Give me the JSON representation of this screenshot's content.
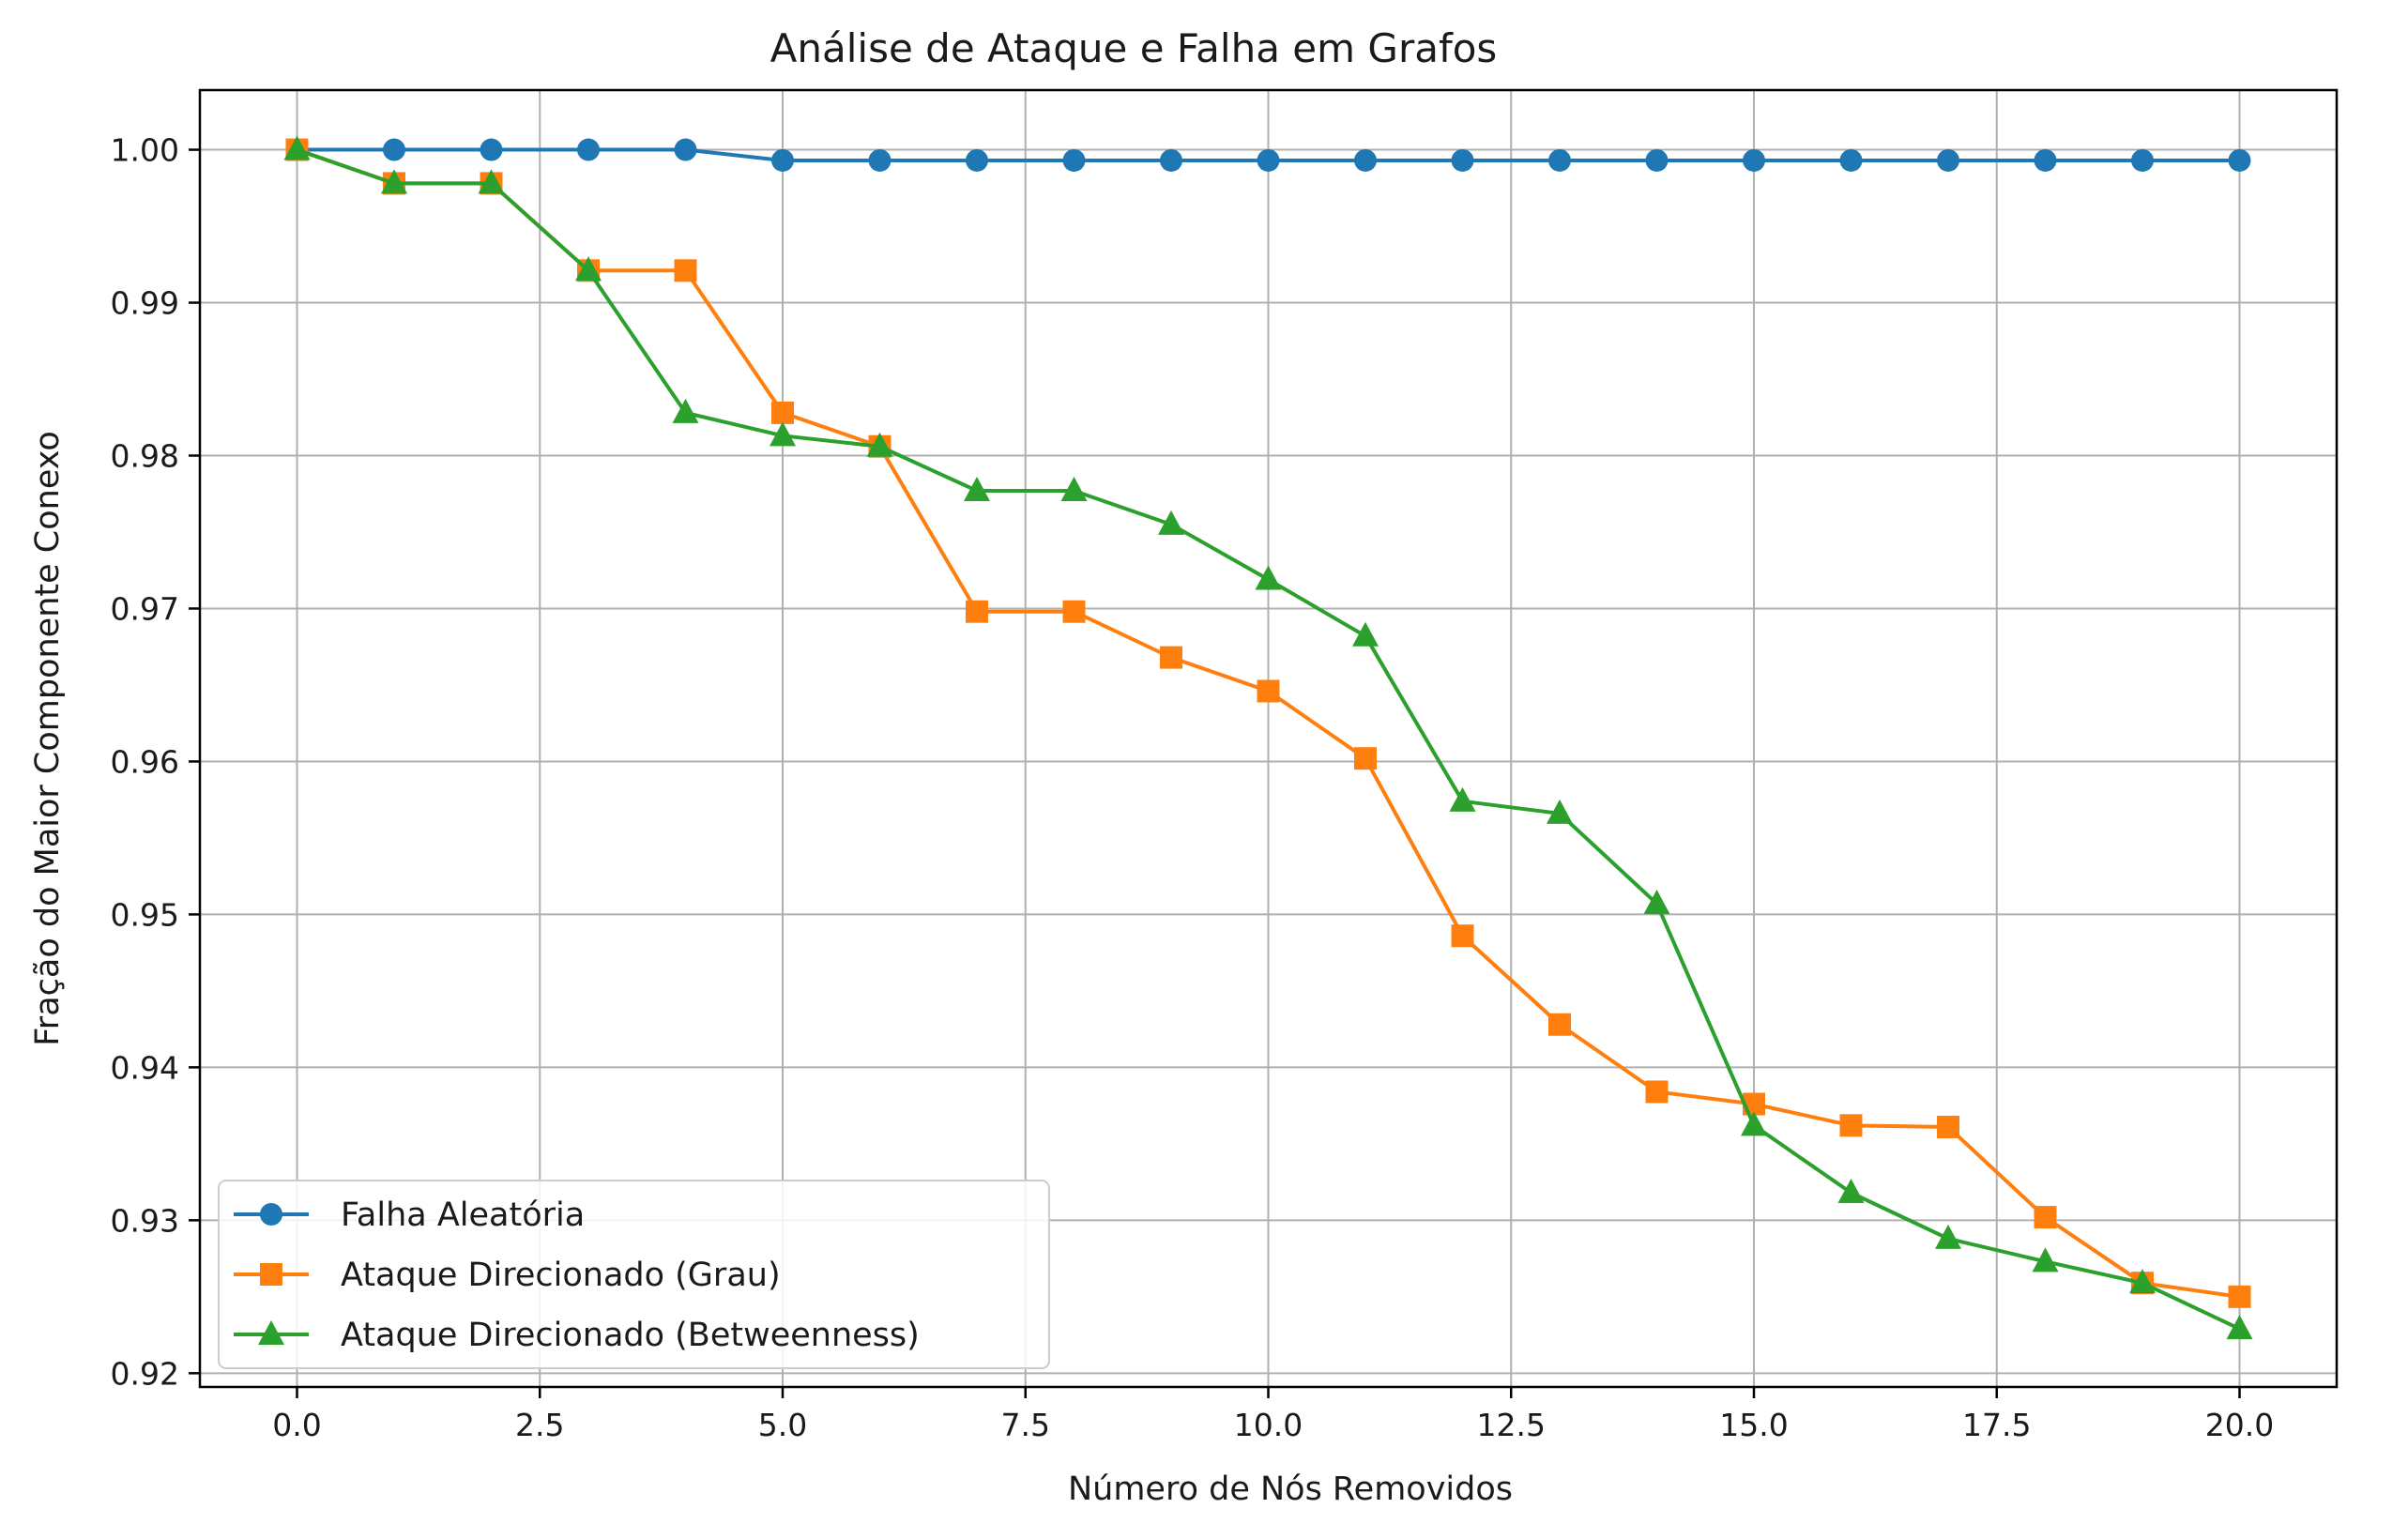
{
  "chart_data": {
    "type": "line",
    "title": "Análise de Ataque e Falha em Grafos",
    "xlabel": "Número de Nós Removidos",
    "ylabel": "Fração do Maior Componente Conexo",
    "xlim": [
      -1,
      21
    ],
    "ylim": [
      0.9191,
      1.0039
    ],
    "xticks": [
      0,
      2.5,
      5,
      7.5,
      10,
      12.5,
      15,
      17.5,
      20
    ],
    "xtick_labels": [
      "0.0",
      "2.5",
      "5.0",
      "7.5",
      "10.0",
      "12.5",
      "15.0",
      "17.5",
      "20.0"
    ],
    "yticks": [
      0.92,
      0.93,
      0.94,
      0.95,
      0.96,
      0.97,
      0.98,
      0.99,
      1.0
    ],
    "ytick_labels": [
      "0.92",
      "0.93",
      "0.94",
      "0.95",
      "0.96",
      "0.97",
      "0.98",
      "0.99",
      "1.00"
    ],
    "grid": true,
    "legend_position": "lower-left",
    "x": [
      0,
      1,
      2,
      3,
      4,
      5,
      6,
      7,
      8,
      9,
      10,
      11,
      12,
      13,
      14,
      15,
      16,
      17,
      18,
      19,
      20
    ],
    "series": [
      {
        "name": "Falha Aleatória",
        "color": "#1f77b4",
        "marker": "circle",
        "values": [
          1.0,
          1.0,
          1.0,
          1.0,
          1.0,
          0.9993,
          0.9993,
          0.9993,
          0.9993,
          0.9993,
          0.9993,
          0.9993,
          0.9993,
          0.9993,
          0.9993,
          0.9993,
          0.9993,
          0.9993,
          0.9993,
          0.9993,
          0.9993
        ]
      },
      {
        "name": "Ataque Direcionado (Grau)",
        "color": "#ff7f0e",
        "marker": "square",
        "values": [
          1.0,
          0.9978,
          0.9978,
          0.9921,
          0.9921,
          0.9828,
          0.9806,
          0.9698,
          0.9698,
          0.9668,
          0.9646,
          0.9602,
          0.9486,
          0.9428,
          0.9384,
          0.9376,
          0.9362,
          0.9361,
          0.9302,
          0.9259,
          0.925
        ]
      },
      {
        "name": "Ataque Direcionado (Betweenness)",
        "color": "#2ca02c",
        "marker": "triangle",
        "values": [
          1.0,
          0.9978,
          0.9978,
          0.9921,
          0.9828,
          0.9813,
          0.9806,
          0.9777,
          0.9777,
          0.9755,
          0.9719,
          0.9682,
          0.9574,
          0.9566,
          0.9507,
          0.9362,
          0.9318,
          0.9288,
          0.9273,
          0.9259,
          0.9229
        ]
      }
    ]
  }
}
